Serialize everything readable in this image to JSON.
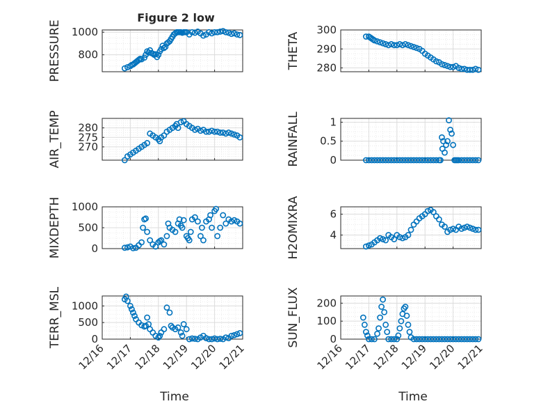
{
  "figure_title": "Figure 2 low",
  "x_ticks": [
    "12/16",
    "12/17",
    "12/18",
    "12/19",
    "12/20",
    "12/21"
  ],
  "x_label": "Time",
  "marker_color": "#0072BD",
  "chart_data": [
    {
      "type": "scatter",
      "ylabel": "PRESSURE",
      "ylim": [
        650,
        1020
      ],
      "yticks": [
        "800",
        "1000"
      ],
      "ytick_values": [
        800,
        1000
      ],
      "x": [
        16.8,
        16.9,
        17.0,
        17.05,
        17.1,
        17.15,
        17.2,
        17.25,
        17.3,
        17.35,
        17.4,
        17.5,
        17.55,
        17.6,
        17.65,
        17.7,
        17.75,
        17.8,
        17.85,
        17.9,
        17.95,
        18.0,
        18.05,
        18.1,
        18.15,
        18.2,
        18.25,
        18.3,
        18.35,
        18.4,
        18.45,
        18.5,
        18.55,
        18.6,
        18.65,
        18.7,
        18.75,
        18.8,
        18.85,
        18.9,
        18.95,
        19.0,
        19.1,
        19.2,
        19.3,
        19.4,
        19.5,
        19.6,
        19.7,
        19.8,
        19.9,
        20.0,
        20.1,
        20.2,
        20.3,
        20.4,
        20.5,
        20.6,
        20.7,
        20.8,
        20.9
      ],
      "y": [
        680,
        690,
        700,
        710,
        715,
        725,
        735,
        745,
        755,
        765,
        760,
        775,
        800,
        830,
        820,
        840,
        815,
        810,
        800,
        805,
        780,
        800,
        830,
        850,
        880,
        860,
        870,
        900,
        910,
        920,
        940,
        960,
        980,
        990,
        1000,
        1000,
        1000,
        1000,
        995,
        1000,
        1000,
        1000,
        980,
        1000,
        995,
        1005,
        990,
        970,
        980,
        1000,
        990,
        1000,
        1000,
        1005,
        1010,
        1000,
        995,
        985,
        990,
        980,
        975
      ]
    },
    {
      "type": "scatter",
      "ylabel": "THETA",
      "ylim": [
        278,
        300
      ],
      "yticks": [
        "280",
        "290",
        "300"
      ],
      "ytick_values": [
        280,
        290,
        300
      ],
      "x": [
        16.9,
        17.0,
        17.05,
        17.1,
        17.15,
        17.2,
        17.3,
        17.4,
        17.5,
        17.6,
        17.7,
        17.8,
        17.9,
        18.0,
        18.1,
        18.2,
        18.3,
        18.4,
        18.5,
        18.6,
        18.7,
        18.8,
        18.9,
        19.0,
        19.1,
        19.2,
        19.3,
        19.4,
        19.5,
        19.6,
        19.7,
        19.8,
        19.9,
        20.0,
        20.1,
        20.2,
        20.3,
        20.4,
        20.5,
        20.6,
        20.7,
        20.8,
        20.9
      ],
      "y": [
        296.5,
        296.5,
        296,
        295.5,
        295,
        294.5,
        294,
        293.5,
        293,
        292.5,
        292,
        292.5,
        292,
        292,
        292.5,
        292,
        292.5,
        292,
        291.5,
        291,
        290.5,
        290,
        289,
        287.5,
        286.5,
        285.5,
        284.5,
        283.5,
        283,
        282,
        281.5,
        281,
        280.5,
        280.5,
        281,
        280,
        279.5,
        279.5,
        279,
        279,
        279,
        279.5,
        279
      ]
    },
    {
      "type": "scatter",
      "ylabel": "AIR_TEMP",
      "ylim": [
        263,
        285
      ],
      "yticks": [
        "270",
        "275",
        "280"
      ],
      "ytick_values": [
        270,
        275,
        280
      ],
      "x": [
        16.8,
        16.9,
        17.0,
        17.1,
        17.2,
        17.3,
        17.4,
        17.5,
        17.6,
        17.7,
        17.8,
        17.9,
        18.0,
        18.05,
        18.1,
        18.2,
        18.3,
        18.4,
        18.5,
        18.6,
        18.65,
        18.7,
        18.8,
        18.9,
        19.0,
        19.1,
        19.2,
        19.3,
        19.4,
        19.5,
        19.6,
        19.7,
        19.8,
        19.9,
        20.0,
        20.1,
        20.2,
        20.3,
        20.4,
        20.5,
        20.6,
        20.7,
        20.8,
        20.9
      ],
      "y": [
        263,
        265,
        266,
        267,
        268,
        269,
        270,
        271,
        272,
        277,
        276,
        275,
        274,
        273,
        275,
        276,
        278,
        279,
        280,
        281,
        282,
        280,
        283,
        283.5,
        282,
        281,
        280,
        279,
        279.5,
        278.5,
        279,
        278,
        278,
        278.5,
        278,
        278,
        277.5,
        277.5,
        277,
        277.5,
        277,
        276.5,
        276,
        275
      ]
    },
    {
      "type": "scatter",
      "ylabel": "RAINFALL",
      "ylim": [
        0,
        1.1
      ],
      "yticks": [
        "0",
        "0.5",
        "1"
      ],
      "ytick_values": [
        0,
        0.5,
        1
      ],
      "x": [
        16.9,
        17.0,
        17.1,
        17.2,
        17.3,
        17.4,
        17.5,
        17.6,
        17.7,
        17.8,
        17.9,
        18.0,
        18.1,
        18.2,
        18.3,
        18.4,
        18.5,
        18.6,
        18.7,
        18.8,
        18.9,
        19.0,
        19.1,
        19.2,
        19.3,
        19.4,
        19.5,
        19.55,
        19.6,
        19.62,
        19.65,
        19.7,
        19.75,
        19.8,
        19.85,
        19.9,
        19.95,
        20.0,
        20.05,
        20.1,
        20.15,
        20.2,
        20.3,
        20.4,
        20.5,
        20.6,
        20.7,
        20.8,
        20.9
      ],
      "y": [
        0,
        0,
        0,
        0,
        0,
        0,
        0,
        0,
        0,
        0,
        0,
        0,
        0,
        0,
        0,
        0,
        0,
        0,
        0,
        0,
        0,
        0,
        0,
        0,
        0,
        0,
        0,
        0,
        0.6,
        0.3,
        0.5,
        0.2,
        0.4,
        0.5,
        1.05,
        0.8,
        0.7,
        0.4,
        0,
        0,
        0,
        0,
        0,
        0,
        0,
        0,
        0,
        0,
        0
      ]
    },
    {
      "type": "scatter",
      "ylabel": "MIXDEPTH",
      "ylim": [
        0,
        1000
      ],
      "yticks": [
        "0",
        "500",
        "1000"
      ],
      "ytick_values": [
        0,
        500,
        1000
      ],
      "x": [
        16.8,
        16.9,
        17.0,
        17.1,
        17.2,
        17.3,
        17.4,
        17.45,
        17.5,
        17.55,
        17.6,
        17.7,
        17.8,
        17.9,
        18.0,
        18.05,
        18.1,
        18.2,
        18.3,
        18.35,
        18.4,
        18.5,
        18.6,
        18.7,
        18.75,
        18.8,
        18.85,
        18.9,
        19.0,
        19.05,
        19.1,
        19.15,
        19.2,
        19.3,
        19.4,
        19.5,
        19.55,
        19.6,
        19.7,
        19.8,
        19.85,
        19.9,
        20.0,
        20.05,
        20.1,
        20.2,
        20.3,
        20.4,
        20.5,
        20.6,
        20.7,
        20.8,
        20.9
      ],
      "y": [
        20,
        30,
        50,
        10,
        20,
        80,
        150,
        500,
        700,
        720,
        400,
        200,
        100,
        50,
        150,
        180,
        200,
        100,
        300,
        600,
        500,
        450,
        400,
        600,
        700,
        550,
        500,
        680,
        300,
        250,
        200,
        400,
        700,
        750,
        650,
        300,
        500,
        200,
        650,
        700,
        800,
        500,
        900,
        950,
        300,
        500,
        800,
        600,
        700,
        650,
        680,
        650,
        600
      ]
    },
    {
      "type": "scatter",
      "ylabel": "H2OMIXRA",
      "ylim": [
        2.7,
        6.7
      ],
      "yticks": [
        "4",
        "6"
      ],
      "ytick_values": [
        4,
        6
      ],
      "x": [
        16.9,
        17.0,
        17.1,
        17.2,
        17.3,
        17.4,
        17.5,
        17.6,
        17.7,
        17.8,
        17.9,
        18.0,
        18.1,
        18.2,
        18.3,
        18.4,
        18.5,
        18.6,
        18.7,
        18.8,
        18.9,
        19.0,
        19.1,
        19.2,
        19.3,
        19.4,
        19.5,
        19.6,
        19.7,
        19.8,
        19.9,
        20.0,
        20.1,
        20.2,
        20.3,
        20.4,
        20.5,
        20.6,
        20.7,
        20.8,
        20.9
      ],
      "y": [
        2.9,
        3.0,
        3.1,
        3.3,
        3.5,
        3.7,
        3.6,
        3.5,
        4.0,
        3.8,
        3.6,
        4.0,
        3.8,
        3.7,
        3.8,
        4.0,
        4.5,
        5.0,
        5.3,
        5.6,
        5.8,
        6.0,
        6.3,
        6.4,
        6.2,
        5.8,
        5.5,
        5.0,
        4.8,
        4.3,
        4.5,
        4.6,
        4.5,
        4.8,
        4.6,
        4.7,
        4.8,
        4.7,
        4.6,
        4.5,
        4.5
      ]
    },
    {
      "type": "scatter",
      "ylabel": "TERR_MSL",
      "ylim": [
        0,
        1300
      ],
      "yticks": [
        "0",
        "500",
        "1000"
      ],
      "ytick_values": [
        0,
        500,
        1000
      ],
      "x": [
        16.8,
        16.85,
        16.9,
        17.0,
        17.05,
        17.1,
        17.15,
        17.2,
        17.3,
        17.4,
        17.5,
        17.55,
        17.6,
        17.65,
        17.7,
        17.8,
        17.9,
        18.0,
        18.05,
        18.1,
        18.2,
        18.3,
        18.4,
        18.45,
        18.5,
        18.6,
        18.7,
        18.8,
        18.85,
        18.9,
        19.0,
        19.1,
        19.2,
        19.3,
        19.4,
        19.5,
        19.6,
        19.7,
        19.8,
        19.9,
        20.0,
        20.1,
        20.2,
        20.3,
        20.4,
        20.5,
        20.6,
        20.7,
        20.8,
        20.9
      ],
      "y": [
        1200,
        1280,
        1150,
        1000,
        900,
        800,
        700,
        600,
        500,
        420,
        380,
        400,
        650,
        450,
        300,
        200,
        100,
        50,
        100,
        200,
        300,
        950,
        800,
        400,
        350,
        300,
        350,
        200,
        100,
        450,
        300,
        0,
        20,
        10,
        0,
        50,
        100,
        30,
        0,
        0,
        20,
        0,
        10,
        0,
        50,
        30,
        100,
        120,
        150,
        180
      ]
    },
    {
      "type": "scatter",
      "ylabel": "SUN_FLUX",
      "ylim": [
        0,
        240
      ],
      "yticks": [
        "0",
        "100",
        "200"
      ],
      "ytick_values": [
        0,
        100,
        200
      ],
      "x": [
        16.8,
        16.85,
        16.9,
        16.95,
        17.0,
        17.1,
        17.2,
        17.3,
        17.35,
        17.4,
        17.45,
        17.5,
        17.55,
        17.6,
        17.65,
        17.7,
        17.8,
        17.9,
        18.0,
        18.05,
        18.1,
        18.15,
        18.2,
        18.25,
        18.3,
        18.35,
        18.4,
        18.45,
        18.5,
        18.6,
        18.7,
        18.8,
        18.9,
        19.0,
        19.1,
        19.2,
        19.3,
        19.4,
        19.5,
        19.6,
        19.7,
        19.8,
        19.9,
        20.0,
        20.1,
        20.2,
        20.3,
        20.4,
        20.5,
        20.6,
        20.7,
        20.8,
        20.9
      ],
      "y": [
        120,
        80,
        40,
        20,
        0,
        0,
        0,
        30,
        60,
        120,
        180,
        220,
        150,
        80,
        40,
        0,
        0,
        0,
        0,
        20,
        60,
        100,
        140,
        170,
        180,
        130,
        80,
        40,
        10,
        0,
        0,
        0,
        0,
        0,
        0,
        0,
        0,
        0,
        0,
        0,
        0,
        0,
        0,
        0,
        0,
        0,
        0,
        0,
        0,
        0,
        0,
        0,
        0
      ]
    }
  ]
}
